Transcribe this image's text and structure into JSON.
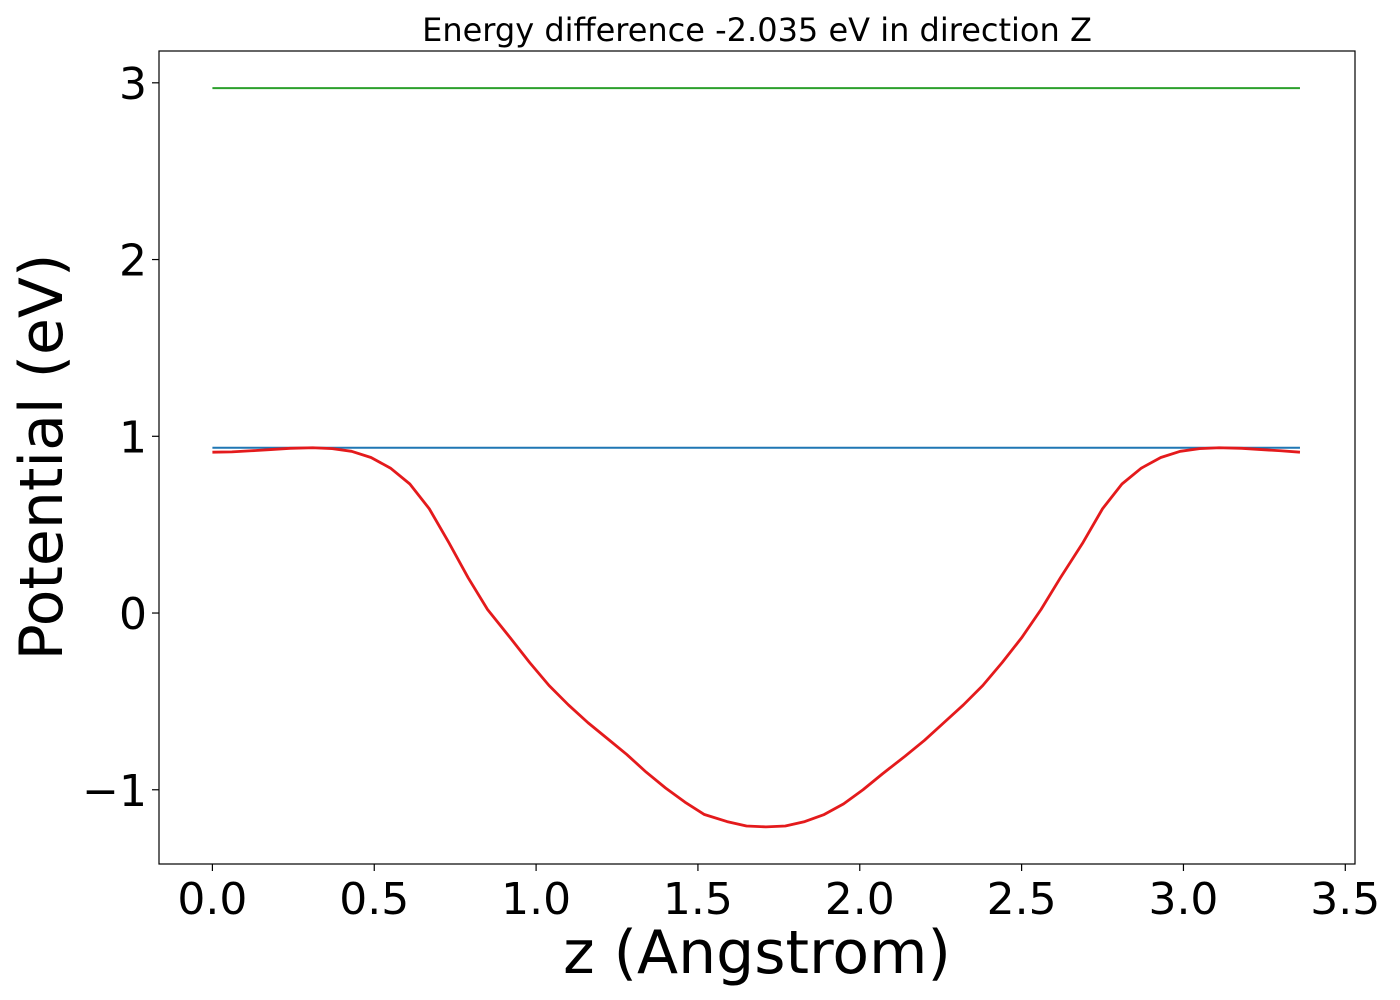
{
  "chart_data": {
    "type": "line",
    "title": "Energy difference -2.035 eV in direction Z",
    "xlabel": "z (Angstrom)",
    "ylabel": "Potential (eV)",
    "xlim": [
      -0.165,
      3.53
    ],
    "ylim": [
      -1.42,
      3.18
    ],
    "xticks": [
      0.0,
      0.5,
      1.0,
      1.5,
      2.0,
      2.5,
      3.0,
      3.5
    ],
    "xtick_labels": [
      "0.0",
      "0.5",
      "1.0",
      "1.5",
      "2.0",
      "2.5",
      "3.0",
      "3.5"
    ],
    "yticks": [
      -1,
      0,
      1,
      2,
      3
    ],
    "ytick_labels": [
      "−1",
      "0",
      "1",
      "2",
      "3"
    ],
    "grid": false,
    "series": [
      {
        "color": "#2ca02c",
        "x": [
          0.0,
          3.36
        ],
        "y": [
          2.97,
          2.97
        ]
      },
      {
        "color": "#1f77b4",
        "x": [
          0.0,
          3.36
        ],
        "y": [
          0.935,
          0.935
        ]
      },
      {
        "color": "#e41a1c",
        "x": [
          0.0,
          0.06,
          0.12,
          0.18,
          0.24,
          0.31,
          0.37,
          0.43,
          0.49,
          0.55,
          0.61,
          0.67,
          0.73,
          0.79,
          0.85,
          0.92,
          0.98,
          1.04,
          1.1,
          1.16,
          1.22,
          1.28,
          1.34,
          1.4,
          1.46,
          1.52,
          1.59,
          1.65,
          1.71,
          1.77,
          1.83,
          1.89,
          1.95,
          2.01,
          2.07,
          2.14,
          2.2,
          2.26,
          2.32,
          2.38,
          2.44,
          2.5,
          2.56,
          2.62,
          2.69,
          2.75,
          2.81,
          2.87,
          2.93,
          2.99,
          3.05,
          3.11,
          3.18,
          3.24,
          3.3,
          3.36
        ],
        "y": [
          0.91,
          0.912,
          0.918,
          0.925,
          0.932,
          0.935,
          0.93,
          0.915,
          0.88,
          0.82,
          0.73,
          0.59,
          0.4,
          0.2,
          0.02,
          -0.14,
          -0.28,
          -0.41,
          -0.52,
          -0.62,
          -0.71,
          -0.8,
          -0.9,
          -0.99,
          -1.07,
          -1.14,
          -1.18,
          -1.205,
          -1.21,
          -1.205,
          -1.18,
          -1.14,
          -1.08,
          -1.0,
          -0.91,
          -0.81,
          -0.72,
          -0.62,
          -0.52,
          -0.41,
          -0.28,
          -0.14,
          0.02,
          0.2,
          0.4,
          0.59,
          0.73,
          0.82,
          0.88,
          0.915,
          0.93,
          0.935,
          0.932,
          0.925,
          0.918,
          0.91
        ]
      }
    ]
  }
}
